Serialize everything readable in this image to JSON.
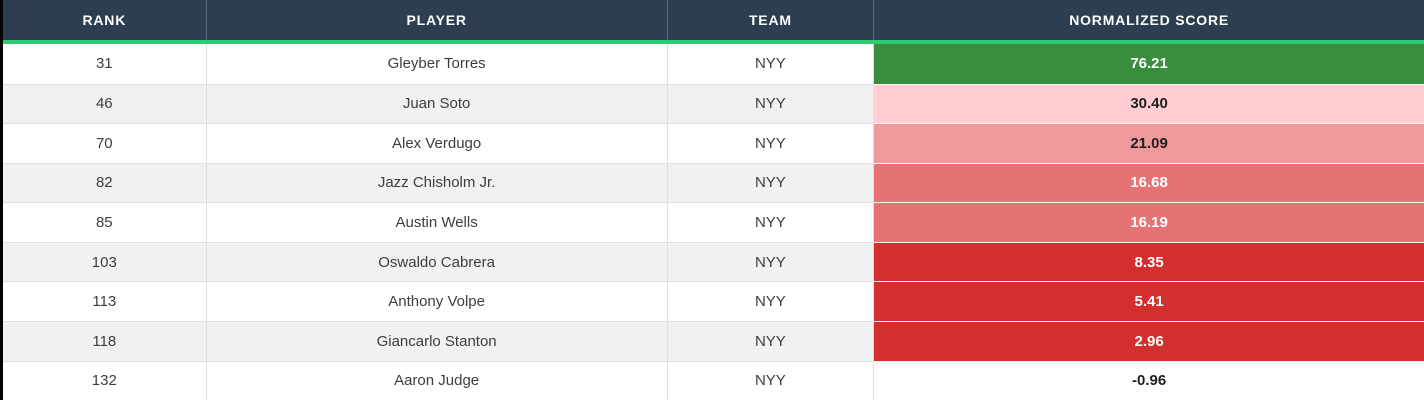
{
  "colors": {
    "header_bg": "#2c3e50",
    "header_text": "#ffffff",
    "accent_green": "#2ecc71",
    "row_white": "#ffffff",
    "row_gray": "#f1f1f1",
    "cell_text": "#3d3d3d",
    "grid_line": "#dfdfdf",
    "page_border": "#000000",
    "score_green": "#388e3c",
    "score_pink_light": "#ffcdd2",
    "score_pink": "#ef9a9a",
    "score_salmon": "#e57373",
    "score_red": "#d32f2f"
  },
  "table": {
    "columns": [
      {
        "key": "rank",
        "label": "RANK"
      },
      {
        "key": "player",
        "label": "PLAYER"
      },
      {
        "key": "team",
        "label": "TEAM"
      },
      {
        "key": "score",
        "label": "NORMALIZED SCORE"
      }
    ],
    "rows": [
      {
        "rank": "31",
        "player": "Gleyber Torres",
        "team": "NYY",
        "score": "76.21",
        "score_bg": "#388e3c",
        "score_text": "#ffffff"
      },
      {
        "rank": "46",
        "player": "Juan Soto",
        "team": "NYY",
        "score": "30.40",
        "score_bg": "#ffcdd2",
        "score_text": "#1f1f1f"
      },
      {
        "rank": "70",
        "player": "Alex Verdugo",
        "team": "NYY",
        "score": "21.09",
        "score_bg": "#ef9a9a",
        "score_text": "#1f1f1f"
      },
      {
        "rank": "82",
        "player": "Jazz Chisholm Jr.",
        "team": "NYY",
        "score": "16.68",
        "score_bg": "#e57373",
        "score_text": "#ffffff"
      },
      {
        "rank": "85",
        "player": "Austin Wells",
        "team": "NYY",
        "score": "16.19",
        "score_bg": "#e57373",
        "score_text": "#ffffff"
      },
      {
        "rank": "103",
        "player": "Oswaldo Cabrera",
        "team": "NYY",
        "score": "8.35",
        "score_bg": "#d32f2f",
        "score_text": "#ffffff"
      },
      {
        "rank": "113",
        "player": "Anthony Volpe",
        "team": "NYY",
        "score": "5.41",
        "score_bg": "#d32f2f",
        "score_text": "#ffffff"
      },
      {
        "rank": "118",
        "player": "Giancarlo Stanton",
        "team": "NYY",
        "score": "2.96",
        "score_bg": "#d32f2f",
        "score_text": "#ffffff"
      },
      {
        "rank": "132",
        "player": "Aaron Judge",
        "team": "NYY",
        "score": "-0.96",
        "score_bg": "#ffffff",
        "score_text": "#1f1f1f"
      }
    ]
  }
}
